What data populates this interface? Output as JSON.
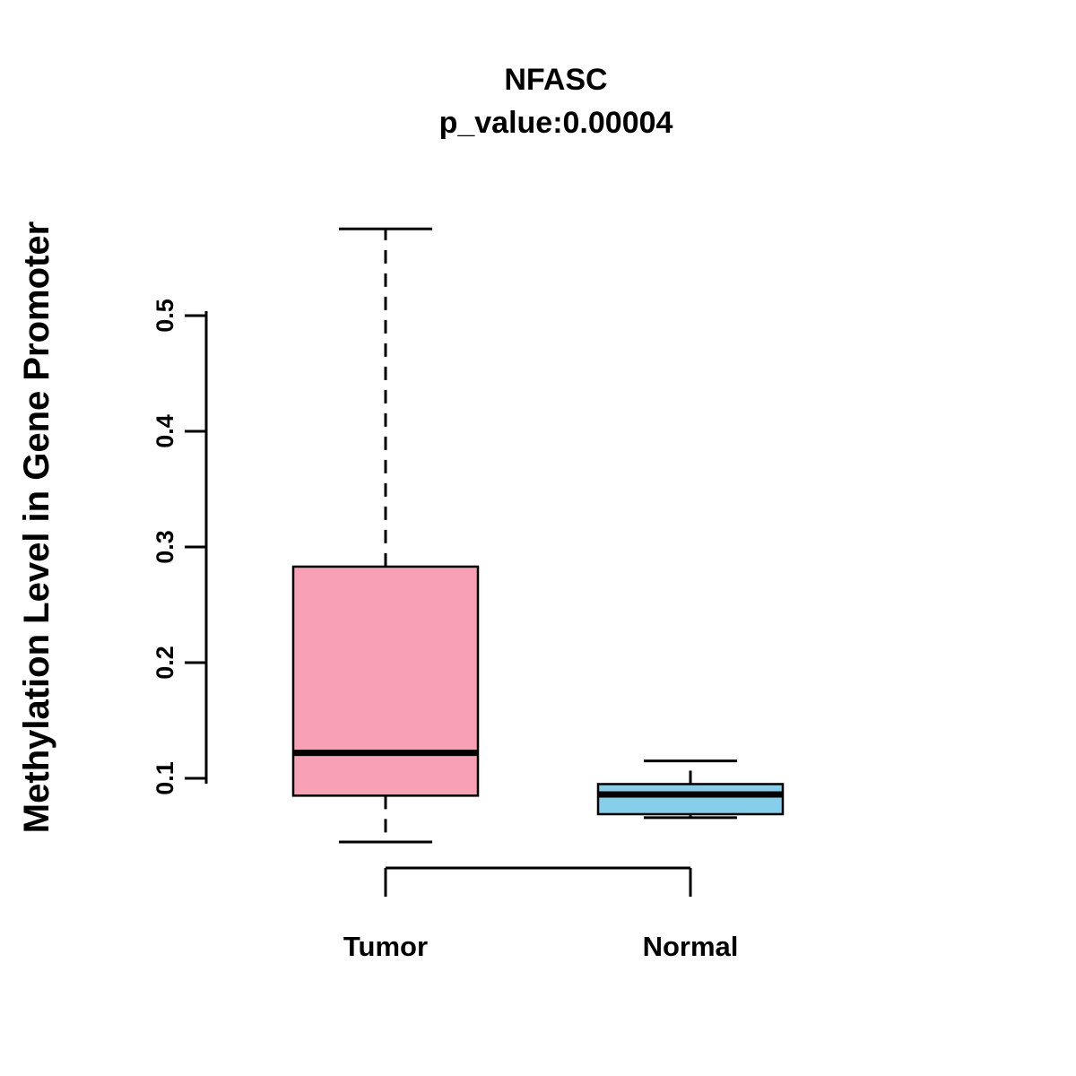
{
  "title": "NFASC",
  "subtitle": "p_value:0.00004",
  "p_value": "0.00004",
  "ylabel": "Methylation Level in Gene Promoter",
  "chart_data": {
    "type": "boxplot",
    "title": "NFASC",
    "subtitle": "p_value:0.00004",
    "xlabel": "",
    "ylabel": "Methylation Level in Gene Promoter",
    "categories": [
      "Tumor",
      "Normal"
    ],
    "yticks": [
      0.1,
      0.2,
      0.3,
      0.4,
      0.5
    ],
    "ylim": [
      0.04,
      0.58
    ],
    "grid": false,
    "legend": "none",
    "series": [
      {
        "name": "Tumor",
        "min": 0.045,
        "q1": 0.085,
        "median": 0.122,
        "q3": 0.283,
        "max": 0.575,
        "color": "#F8A0B4"
      },
      {
        "name": "Normal",
        "min": 0.066,
        "q1": 0.069,
        "median": 0.086,
        "q3": 0.095,
        "max": 0.115,
        "color": "#87CEEB"
      }
    ],
    "colors": {
      "box_border": "#000000",
      "median_line": "#000000",
      "whisker": "#000000",
      "axis": "#000000"
    }
  }
}
